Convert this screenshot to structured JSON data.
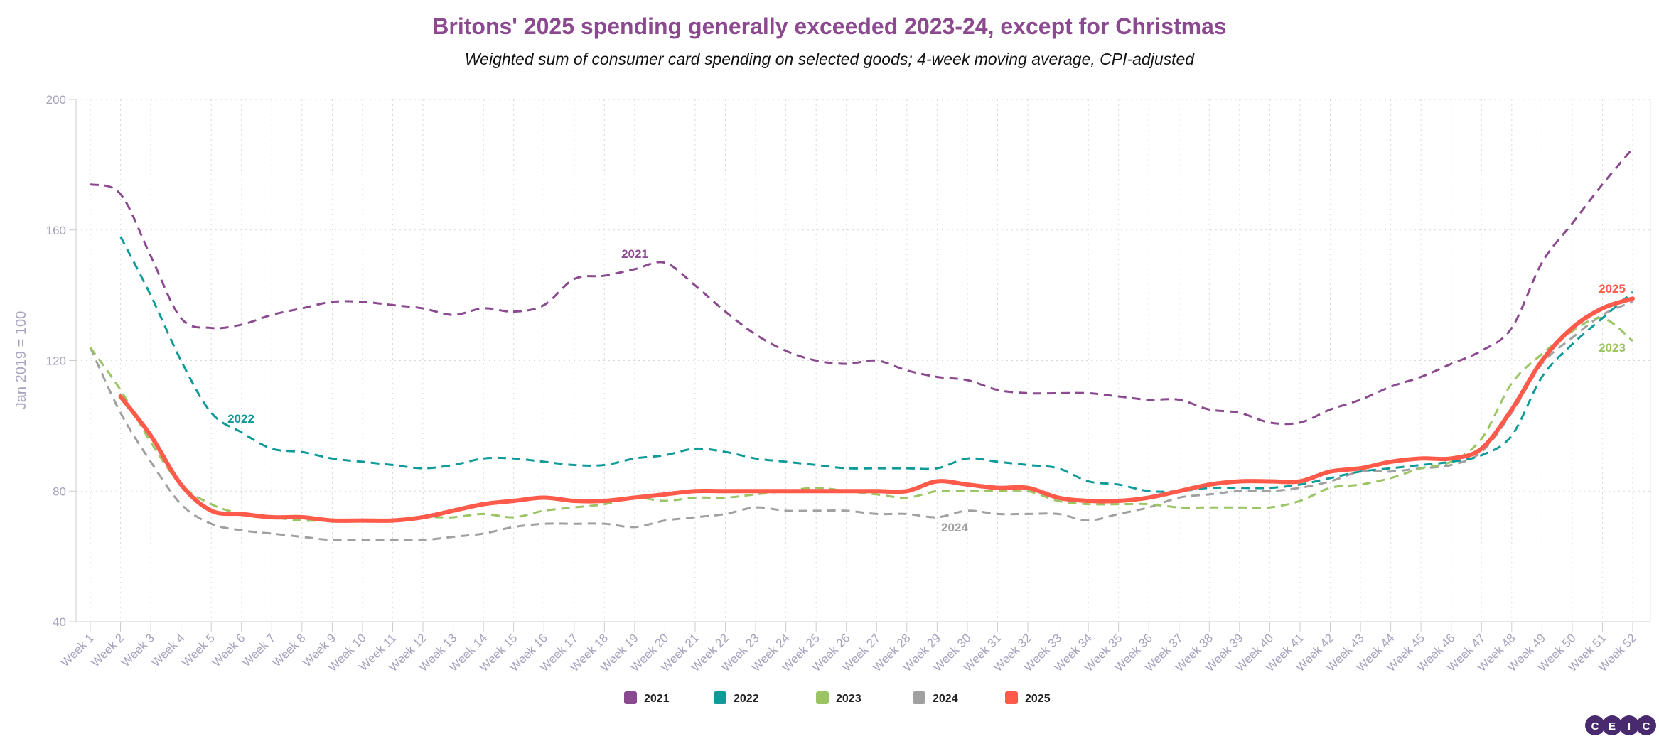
{
  "chart_data": {
    "type": "line",
    "title": "Britons' 2025 spending generally exceeded 2023-24, except for Christmas",
    "subtitle": "Weighted sum of consumer card spending on selected goods; 4-week moving average, CPI-adjusted",
    "xlabel": "",
    "ylabel": "Jan 2019 = 100",
    "ylim": [
      40,
      200
    ],
    "yticks": [
      40,
      80,
      120,
      160,
      200
    ],
    "grid": true,
    "legend_position": "bottom",
    "categories": [
      "Week 1",
      "Week 2",
      "Week 3",
      "Week 4",
      "Week 5",
      "Week 6",
      "Week 7",
      "Week 8",
      "Week 9",
      "Week 10",
      "Week 11",
      "Week 12",
      "Week 13",
      "Week 14",
      "Week 15",
      "Week 16",
      "Week 17",
      "Week 18",
      "Week 19",
      "Week 20",
      "Week 21",
      "Week 22",
      "Week 23",
      "Week 24",
      "Week 25",
      "Week 26",
      "Week 27",
      "Week 28",
      "Week 29",
      "Week 30",
      "Week 31",
      "Week 32",
      "Week 33",
      "Week 34",
      "Week 35",
      "Week 36",
      "Week 37",
      "Week 38",
      "Week 39",
      "Week 40",
      "Week 41",
      "Week 42",
      "Week 43",
      "Week 44",
      "Week 45",
      "Week 46",
      "Week 47",
      "Week 48",
      "Week 49",
      "Week 50",
      "Week 51",
      "Week 52"
    ],
    "series": [
      {
        "name": "2021",
        "color": "#8b4a8f",
        "dashed": true,
        "values": [
          174,
          171,
          152,
          133,
          130,
          131,
          134,
          136,
          138,
          138,
          137,
          136,
          134,
          136,
          135,
          137,
          145,
          146,
          148,
          150,
          143,
          135,
          128,
          123,
          120,
          119,
          120,
          117,
          115,
          114,
          111,
          110,
          110,
          110,
          109,
          108,
          108,
          105,
          104,
          101,
          101,
          105,
          108,
          112,
          115,
          119,
          123,
          130,
          150,
          162,
          174,
          185
        ]
      },
      {
        "name": "2022",
        "color": "#0f9a9a",
        "dashed": true,
        "values": [
          null,
          158,
          140,
          120,
          104,
          98,
          93,
          92,
          90,
          89,
          88,
          87,
          88,
          90,
          90,
          89,
          88,
          88,
          90,
          91,
          93,
          92,
          90,
          89,
          88,
          87,
          87,
          87,
          87,
          90,
          89,
          88,
          87,
          83,
          82,
          80,
          80,
          81,
          81,
          81,
          82,
          84,
          86,
          87,
          88,
          89,
          91,
          97,
          115,
          125,
          133,
          141
        ]
      },
      {
        "name": "2023",
        "color": "#9bc564",
        "dashed": true,
        "values": [
          124,
          111,
          95,
          82,
          76,
          73,
          72,
          71,
          71,
          71,
          71,
          72,
          72,
          73,
          72,
          74,
          75,
          76,
          78,
          77,
          78,
          78,
          79,
          80,
          81,
          80,
          79,
          78,
          80,
          80,
          80,
          80,
          77,
          76,
          76,
          76,
          75,
          75,
          75,
          75,
          77,
          81,
          82,
          84,
          87,
          89,
          96,
          113,
          122,
          129,
          133,
          126
        ]
      },
      {
        "name": "2024",
        "color": "#a0a0a0",
        "dashed": true,
        "values": [
          124,
          104,
          89,
          76,
          70,
          68,
          67,
          66,
          65,
          65,
          65,
          65,
          66,
          67,
          69,
          70,
          70,
          70,
          69,
          71,
          72,
          73,
          75,
          74,
          74,
          74,
          73,
          73,
          72,
          74,
          73,
          73,
          73,
          71,
          73,
          75,
          78,
          79,
          80,
          80,
          81,
          83,
          86,
          86,
          87,
          88,
          92,
          104,
          119,
          127,
          134,
          138
        ]
      },
      {
        "name": "2025",
        "color": "#ff5a4a",
        "dashed": false,
        "values": [
          null,
          109,
          97,
          82,
          74,
          73,
          72,
          72,
          71,
          71,
          71,
          72,
          74,
          76,
          77,
          78,
          77,
          77,
          78,
          79,
          80,
          80,
          80,
          80,
          80,
          80,
          80,
          80,
          83,
          82,
          81,
          81,
          78,
          77,
          77,
          78,
          80,
          82,
          83,
          83,
          83,
          86,
          87,
          89,
          90,
          90,
          93,
          105,
          120,
          130,
          136,
          139
        ]
      }
    ],
    "annotations": [
      {
        "text": "2021",
        "series": "2021",
        "week": "Week 19"
      },
      {
        "text": "2022",
        "series": "2022",
        "week": "Week 6"
      },
      {
        "text": "2024",
        "series": "2024",
        "week": "Week 29"
      },
      {
        "text": "2025",
        "series": "2025",
        "week": "Week 52"
      },
      {
        "text": "2023",
        "series": "2023",
        "week": "Week 52"
      }
    ]
  },
  "colors": {
    "title": "#8b4a8f",
    "axis_text": "#a6a3bd"
  },
  "logo": {
    "text": [
      "C",
      "E",
      "I",
      "C"
    ],
    "color": "#4a2a6e"
  }
}
